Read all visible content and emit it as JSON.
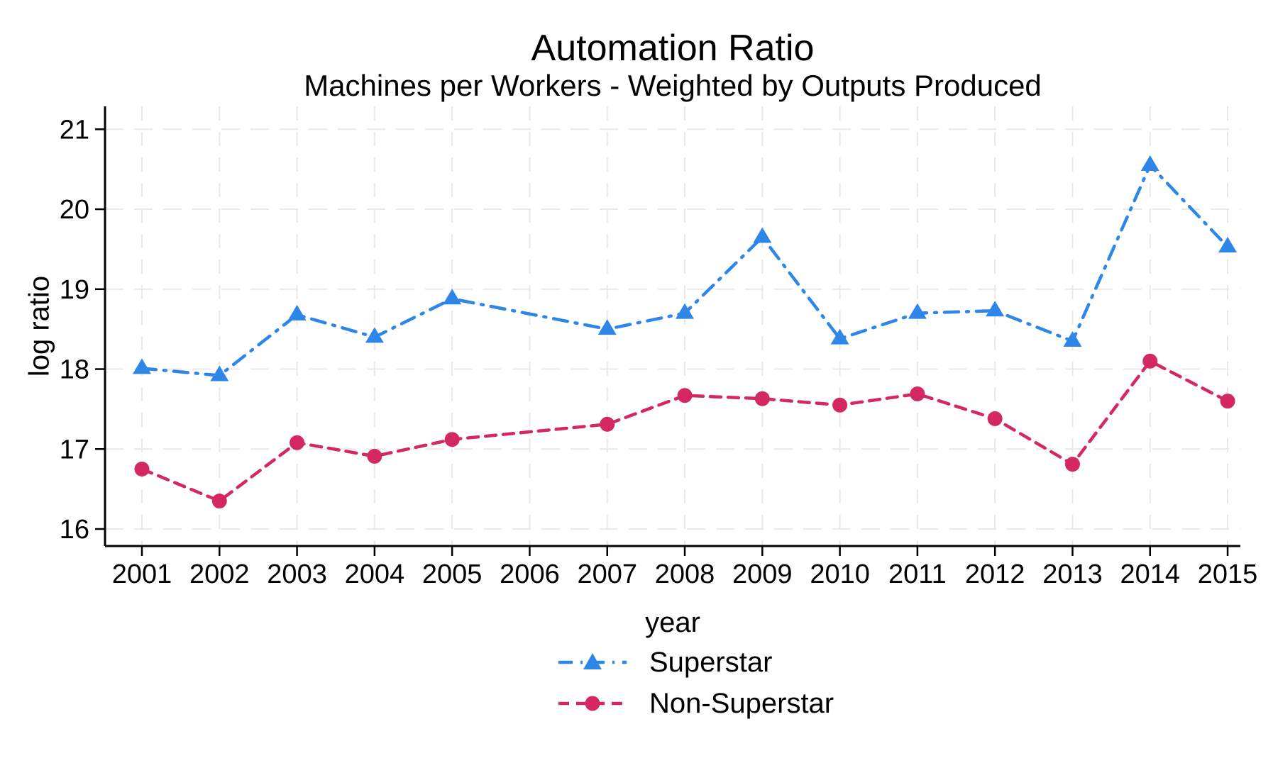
{
  "figure": {
    "title": "Automation Ratio",
    "subtitle": "Machines per Workers - Weighted by Outputs Produced"
  },
  "chart_data": {
    "type": "line",
    "title": "Automation Ratio",
    "subtitle": "Machines per Workers - Weighted by Outputs Produced",
    "xlabel": "year",
    "ylabel": "log ratio",
    "x_ticks": [
      2001,
      2002,
      2003,
      2004,
      2005,
      2006,
      2007,
      2008,
      2009,
      2010,
      2011,
      2012,
      2013,
      2014,
      2015
    ],
    "y_ticks": [
      16,
      17,
      18,
      19,
      20,
      21
    ],
    "xlim": [
      2000.5,
      2015.2
    ],
    "ylim": [
      15.8,
      21.3
    ],
    "grid": true,
    "grid_color": "#e9e9e9",
    "axis_color": "#000000",
    "legend_position": "bottom-center",
    "series": [
      {
        "name": "Superstar",
        "color": "#2e86e9",
        "marker": "triangle",
        "line_style": "dash-dot",
        "x": [
          2001,
          2002,
          2003,
          2004,
          2005,
          2007,
          2008,
          2009,
          2010,
          2011,
          2012,
          2013,
          2014,
          2015
        ],
        "y": [
          18.01,
          17.92,
          18.68,
          18.4,
          18.88,
          18.5,
          18.7,
          19.65,
          18.38,
          18.7,
          18.73,
          18.35,
          20.55,
          19.53
        ]
      },
      {
        "name": "Non-Superstar",
        "color": "#d42861",
        "marker": "circle",
        "line_style": "dashed",
        "x": [
          2001,
          2002,
          2003,
          2004,
          2005,
          2007,
          2008,
          2009,
          2010,
          2011,
          2012,
          2013,
          2014,
          2015
        ],
        "y": [
          16.75,
          16.35,
          17.08,
          16.91,
          17.12,
          17.31,
          17.67,
          17.63,
          17.55,
          17.69,
          17.38,
          16.81,
          18.1,
          17.6
        ]
      }
    ]
  }
}
